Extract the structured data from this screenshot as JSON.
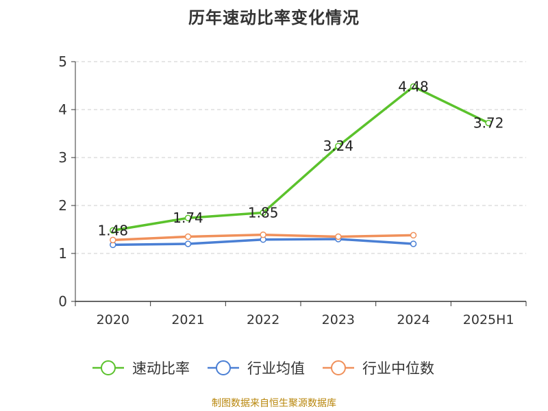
{
  "chart_data": {
    "type": "line",
    "title": "历年速动比率变化情况",
    "categories": [
      "2020",
      "2021",
      "2022",
      "2023",
      "2024",
      "2025H1"
    ],
    "ylim": [
      0,
      5
    ],
    "yticks": [
      "0",
      "1",
      "2",
      "3",
      "4",
      "5"
    ],
    "grid": true,
    "legend_position": "bottom",
    "series": [
      {
        "name": "速动比率",
        "color": "#5bc22c",
        "values": [
          1.48,
          1.74,
          1.85,
          3.24,
          4.48,
          3.72
        ],
        "labels": [
          "1.48",
          "1.74",
          "1.85",
          "3.24",
          "4.48",
          "3.72"
        ]
      },
      {
        "name": "行业均值",
        "color": "#4a7fd4",
        "values": [
          1.18,
          1.2,
          1.29,
          1.3,
          1.2,
          null
        ]
      },
      {
        "name": "行业中位数",
        "color": "#f0905a",
        "values": [
          1.28,
          1.35,
          1.39,
          1.35,
          1.38,
          null
        ]
      }
    ]
  },
  "footer": {
    "source": "制图数据来自恒生聚源数据库"
  }
}
